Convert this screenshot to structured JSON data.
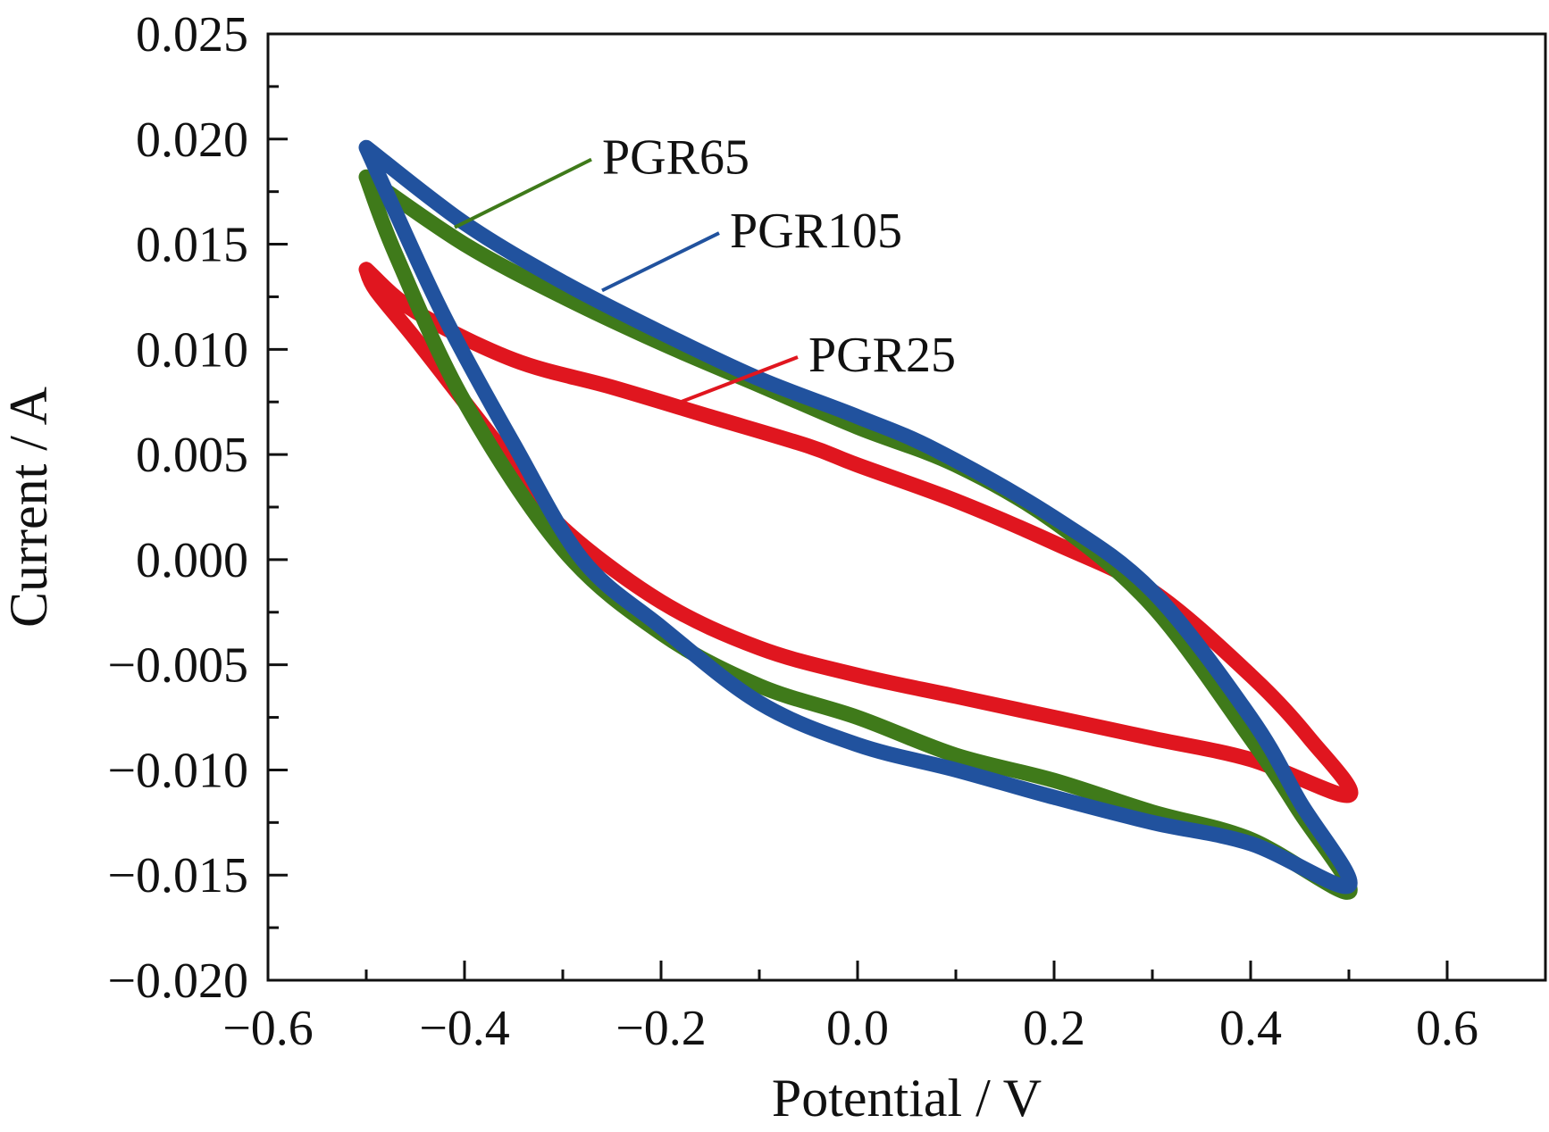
{
  "chart_data": {
    "type": "line",
    "title": "",
    "xlabel": "Potential / V",
    "ylabel": "Current / A",
    "xlim": [
      -0.6,
      0.7
    ],
    "ylim": [
      -0.02,
      0.025
    ],
    "x_ticks": [
      -0.6,
      -0.4,
      -0.2,
      0.0,
      0.2,
      0.4,
      0.6
    ],
    "x_tick_labels": [
      "−0.6",
      "−0.4",
      "−0.2",
      "0.0",
      "0.2",
      "0.4",
      "0.6"
    ],
    "y_ticks": [
      -0.02,
      -0.015,
      -0.01,
      -0.005,
      0.0,
      0.005,
      0.01,
      0.015,
      0.02,
      0.025
    ],
    "y_tick_labels": [
      "−0.020",
      "−0.015",
      "−0.010",
      "−0.005",
      "0.000",
      "0.005",
      "0.010",
      "0.015",
      "0.020",
      "0.025"
    ],
    "grid": false,
    "legend": "none",
    "series": [
      {
        "name": "PGR25",
        "color": "#e0161f",
        "points": [
          [
            -0.5,
            0.0138
          ],
          [
            -0.45,
            0.0118
          ],
          [
            -0.35,
            0.0095
          ],
          [
            -0.25,
            0.0082
          ],
          [
            -0.15,
            0.0068
          ],
          [
            -0.05,
            0.0054
          ],
          [
            0.0,
            0.0045
          ],
          [
            0.1,
            0.0028
          ],
          [
            0.2,
            0.0008
          ],
          [
            0.3,
            -0.0015
          ],
          [
            0.4,
            -0.0055
          ],
          [
            0.46,
            -0.0085
          ],
          [
            0.5,
            -0.0112
          ],
          [
            0.4,
            -0.0095
          ],
          [
            0.3,
            -0.0085
          ],
          [
            0.2,
            -0.0075
          ],
          [
            0.1,
            -0.0065
          ],
          [
            0.0,
            -0.0055
          ],
          [
            -0.1,
            -0.0042
          ],
          [
            -0.2,
            -0.002
          ],
          [
            -0.3,
            0.0015
          ],
          [
            -0.35,
            0.0045
          ],
          [
            -0.4,
            0.0075
          ],
          [
            -0.45,
            0.0105
          ],
          [
            -0.49,
            0.0128
          ],
          [
            -0.5,
            0.0138
          ]
        ]
      },
      {
        "name": "PGR65",
        "color": "#3f7a1a",
        "points": [
          [
            -0.5,
            0.0182
          ],
          [
            -0.4,
            0.015
          ],
          [
            -0.3,
            0.0125
          ],
          [
            -0.2,
            0.0103
          ],
          [
            -0.1,
            0.0083
          ],
          [
            0.0,
            0.0063
          ],
          [
            0.1,
            0.0045
          ],
          [
            0.2,
            0.0018
          ],
          [
            0.3,
            -0.0022
          ],
          [
            0.4,
            -0.0085
          ],
          [
            0.45,
            -0.012
          ],
          [
            0.5,
            -0.0158
          ],
          [
            0.4,
            -0.0133
          ],
          [
            0.3,
            -0.012
          ],
          [
            0.2,
            -0.0105
          ],
          [
            0.1,
            -0.0093
          ],
          [
            0.0,
            -0.0075
          ],
          [
            -0.1,
            -0.006
          ],
          [
            -0.2,
            -0.0035
          ],
          [
            -0.3,
            0.0005
          ],
          [
            -0.4,
            0.0075
          ],
          [
            -0.47,
            0.0145
          ],
          [
            -0.5,
            0.0182
          ]
        ]
      },
      {
        "name": "PGR105",
        "color": "#21529e",
        "points": [
          [
            -0.5,
            0.0196
          ],
          [
            -0.4,
            0.016
          ],
          [
            -0.3,
            0.0132
          ],
          [
            -0.2,
            0.0108
          ],
          [
            -0.1,
            0.0086
          ],
          [
            0.0,
            0.0068
          ],
          [
            0.08,
            0.0052
          ],
          [
            0.2,
            0.002
          ],
          [
            0.3,
            -0.0015
          ],
          [
            0.4,
            -0.0075
          ],
          [
            0.45,
            -0.0115
          ],
          [
            0.5,
            -0.0155
          ],
          [
            0.4,
            -0.0135
          ],
          [
            0.3,
            -0.0125
          ],
          [
            0.2,
            -0.0113
          ],
          [
            0.1,
            -0.01
          ],
          [
            0.0,
            -0.0088
          ],
          [
            -0.1,
            -0.0068
          ],
          [
            -0.2,
            -0.0032
          ],
          [
            -0.28,
            0.0
          ],
          [
            -0.35,
            0.0055
          ],
          [
            -0.42,
            0.0115
          ],
          [
            -0.47,
            0.0165
          ],
          [
            -0.5,
            0.0196
          ]
        ]
      }
    ],
    "annotations": [
      {
        "text": "PGR65",
        "series": "PGR65",
        "point_to": [
          -0.41,
          0.0158
        ],
        "label_at": [
          -0.26,
          0.0192
        ]
      },
      {
        "text": "PGR105",
        "series": "PGR105",
        "point_to": [
          -0.26,
          0.0128
        ],
        "label_at": [
          -0.13,
          0.0157
        ]
      },
      {
        "text": "PGR25",
        "series": "PGR25",
        "point_to": [
          -0.18,
          0.0075
        ],
        "label_at": [
          -0.05,
          0.0098
        ]
      }
    ]
  }
}
